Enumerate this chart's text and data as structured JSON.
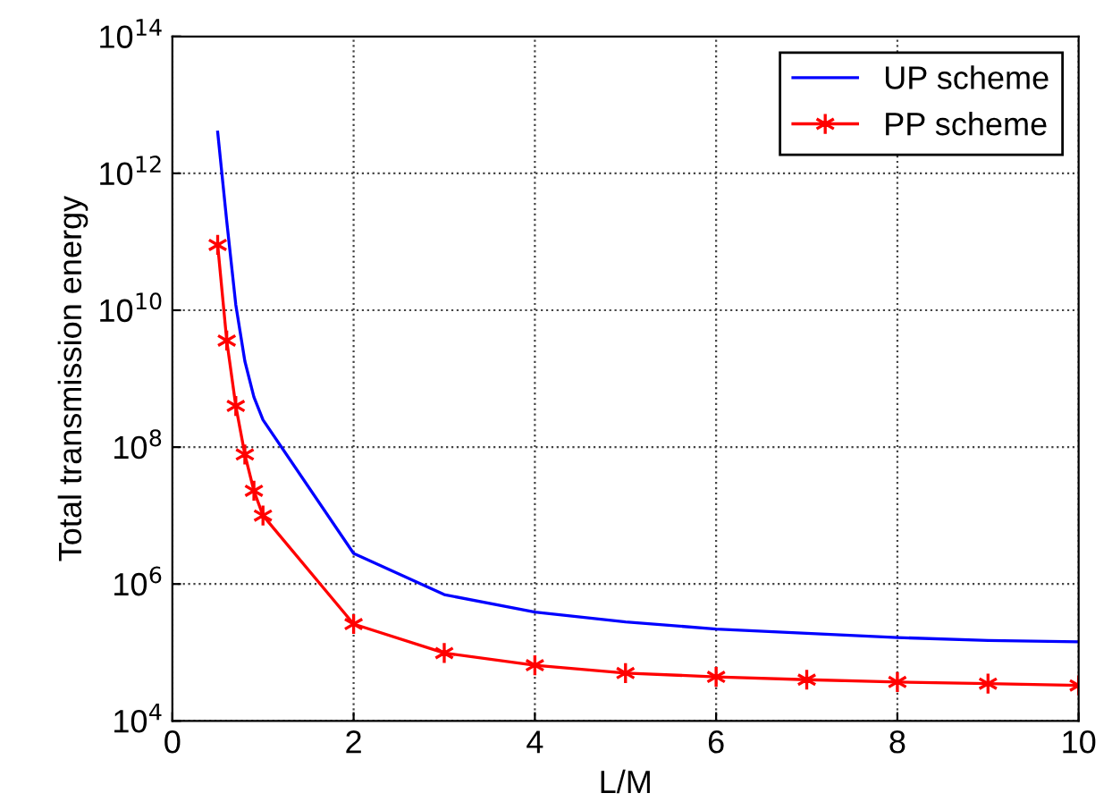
{
  "chart_data": {
    "type": "line",
    "xlabel": "L/M",
    "ylabel": "Total transmission energy",
    "x": [
      0.5,
      0.6,
      0.7,
      0.8,
      0.9,
      1,
      2,
      3,
      4,
      5,
      6,
      7,
      8,
      9,
      10
    ],
    "series": [
      {
        "name": "UP scheme",
        "color": "#0000ff",
        "marker": "none",
        "values": [
          4000000000000.0,
          200000000000.0,
          12000000000.0,
          1800000000.0,
          540000000.0,
          250000000.0,
          2800000.0,
          700000.0,
          390000.0,
          280000.0,
          220000.0,
          190000.0,
          165000.0,
          150000.0,
          143000.0
        ]
      },
      {
        "name": "PP scheme",
        "color": "#ff0000",
        "marker": "cross",
        "values": [
          90000000000.0,
          3600000000.0,
          400000000.0,
          78000000.0,
          23000000.0,
          10000000.0,
          260000.0,
          98000.0,
          65000.0,
          50000.0,
          44000.0,
          40000.0,
          37000.0,
          35000.0,
          33000.0
        ]
      }
    ],
    "log": "y",
    "xlim": [
      0,
      10
    ],
    "ylim": [
      10000.0,
      100000000000000.0
    ],
    "xticks": [
      0,
      2,
      4,
      6,
      8,
      10
    ],
    "yticks": [
      {
        "value": 10000.0,
        "label": "10$^{4}$"
      },
      {
        "value": 1000000.0,
        "label": "10$^{6}$"
      },
      {
        "value": 100000000.0,
        "label": "10$^{8}$"
      },
      {
        "value": 10000000000.0,
        "label": "10$^{10}$"
      },
      {
        "value": 1000000000000.0,
        "label": "10$^{12}$"
      },
      {
        "value": 100000000000000.0,
        "label": "10$^{14}$"
      }
    ],
    "grid": true,
    "legend": "top right",
    "line_style": "solid"
  }
}
